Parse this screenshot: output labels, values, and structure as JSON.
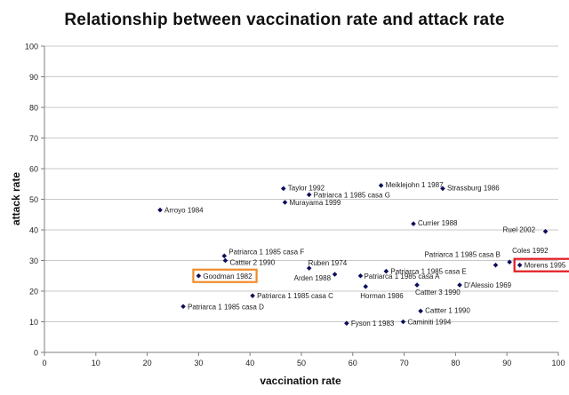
{
  "chart_data": {
    "type": "scatter",
    "title": "Relationship between vaccination rate and attack rate",
    "xlabel": "vaccination rate",
    "ylabel": "attack rate",
    "xlim": [
      0,
      100
    ],
    "ylim": [
      0,
      100
    ],
    "xticks": [
      "0",
      "10",
      "20",
      "30",
      "40",
      "50",
      "60",
      "70",
      "80",
      "90",
      "100"
    ],
    "yticks": [
      "0",
      "10",
      "20",
      "30",
      "40",
      "50",
      "60",
      "70",
      "80",
      "90",
      "100"
    ],
    "grid": "horizontal",
    "marker_color": "#0d0d5c",
    "highlight_colors": {
      "orange": "#f08c28",
      "red": "#e0191f"
    },
    "points": [
      {
        "label": "Arroyo 1984",
        "x": 22.5,
        "y": 46.5
      },
      {
        "label": "Taylor 1992",
        "x": 46.5,
        "y": 53.5
      },
      {
        "label": "Patriarca 1 1985 casa G",
        "x": 51.5,
        "y": 51.5
      },
      {
        "label": "Murayama 1999",
        "x": 46.8,
        "y": 49.0
      },
      {
        "label": "Meiklejohn 1 1987",
        "x": 65.5,
        "y": 54.5
      },
      {
        "label": "Strassburg 1986",
        "x": 77.5,
        "y": 53.5
      },
      {
        "label": "Currier 1988",
        "x": 71.8,
        "y": 42.0
      },
      {
        "label": "Ruel 2002",
        "x": 97.5,
        "y": 39.5
      },
      {
        "label": "Patriarca 1 1985 casa F",
        "x": 35.0,
        "y": 31.5
      },
      {
        "label": "Cattter 2 1990",
        "x": 35.2,
        "y": 30.0
      },
      {
        "label": "Goodman 1982",
        "x": 30.0,
        "y": 25.0,
        "highlight": "orange"
      },
      {
        "label": "Ruben 1974",
        "x": 56.5,
        "y": 25.5
      },
      {
        "label": "Arden 1988",
        "x": 51.5,
        "y": 27.5
      },
      {
        "label": "Patriarca 1 1985 casa C",
        "x": 40.5,
        "y": 18.5
      },
      {
        "label": "Patriarca 1 1985 casa D",
        "x": 27.0,
        "y": 15.0
      },
      {
        "label": "Patriarca 1 1985 casa B",
        "x": 87.8,
        "y": 28.5
      },
      {
        "label": "Coles 1992",
        "x": 90.5,
        "y": 29.5
      },
      {
        "label": "Morens 1995",
        "x": 92.5,
        "y": 28.5,
        "highlight": "red"
      },
      {
        "label": "Patriarca 1 1985 casa E",
        "x": 66.5,
        "y": 26.5
      },
      {
        "label": "Patriarca 1 1985 casa A",
        "x": 61.5,
        "y": 25.0
      },
      {
        "label": "Horman 1986",
        "x": 62.5,
        "y": 21.5
      },
      {
        "label": "Cattter 3 1990",
        "x": 72.5,
        "y": 22.0
      },
      {
        "label": "D'Alessio 1969",
        "x": 80.8,
        "y": 22.0
      },
      {
        "label": "Cattter 1 1990",
        "x": 73.2,
        "y": 13.5
      },
      {
        "label": "Fyson 1 1983",
        "x": 58.8,
        "y": 9.5
      },
      {
        "label": "Caminiti 1994",
        "x": 69.8,
        "y": 10.0
      }
    ]
  }
}
